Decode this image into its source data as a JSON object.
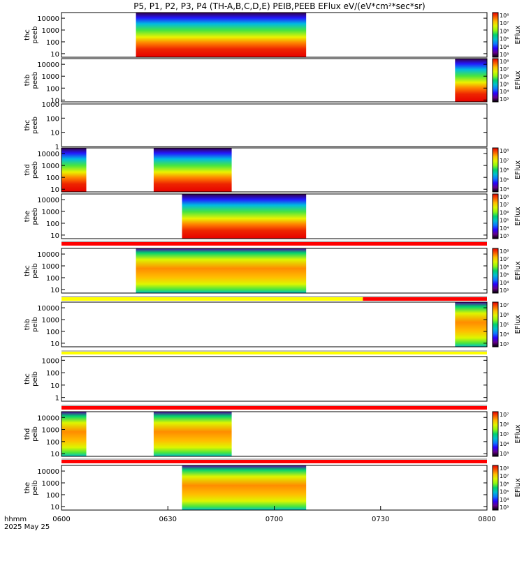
{
  "title": "P5, P1, P2, P3, P4 (TH-A,B,C,D,E) PEIB,PEEB EFlux eV/(eV*cm²*sec*sr)",
  "colors": {
    "flag_red": "#ff0000",
    "flag_yellow": "#ffff00",
    "background": "#ffffff"
  },
  "chart_data": {
    "type": "heatmap",
    "title": "P5, P1, P2, P3, P4 (TH-A,B,C,D,E) PEIB,PEEB EFlux eV/(eV*cm²*sec*sr)",
    "x_axis": {
      "label": "hhmm",
      "date_label": "2025 May 25",
      "range": [
        "0600",
        "0800"
      ],
      "tick_labels": [
        "0600",
        "0630",
        "0700",
        "0730",
        "0800"
      ]
    },
    "colorbar_label": "EFlux",
    "panels": [
      {
        "label": [
          "thc",
          "peeb"
        ],
        "y_range": [
          5,
          30000
        ],
        "y_ticks": [
          "10",
          "100",
          "1000",
          "10000"
        ],
        "data_intervals": [
          [
            "0621",
            "0709"
          ]
        ],
        "colorbar_ticks": [
          "10⁸",
          "10⁷",
          "10⁶",
          "10⁵",
          "10⁴",
          "10³"
        ],
        "colorbar_range_exp": [
          2.5,
          8.3
        ]
      },
      {
        "label": [
          "thb",
          "peeb"
        ],
        "y_range": [
          7,
          30000
        ],
        "y_ticks": [
          "10",
          "100",
          "1000",
          "10000"
        ],
        "data_intervals": [
          [
            "0751",
            "0800"
          ]
        ],
        "colorbar_ticks": [
          "10⁸",
          "10⁷",
          "10⁶",
          "10⁵",
          "10⁴",
          "10³"
        ],
        "colorbar_range_exp": [
          2.8,
          8.3
        ]
      },
      {
        "label": [
          "thc",
          "peeb"
        ],
        "y_range": [
          1,
          1000
        ],
        "y_ticks": [
          "1",
          "10",
          "100",
          "1000"
        ],
        "data_intervals": []
      },
      {
        "label": [
          "thd",
          "peeb"
        ],
        "y_range": [
          6,
          30000
        ],
        "y_ticks": [
          "10",
          "100",
          "1000",
          "10000"
        ],
        "data_intervals": [
          [
            "0600",
            "0607"
          ],
          [
            "0626",
            "0648"
          ]
        ],
        "colorbar_ticks": [
          "10⁸",
          "10⁷",
          "10⁶",
          "10⁵",
          "10⁴"
        ],
        "colorbar_range_exp": [
          3.3,
          8.3
        ]
      },
      {
        "label": [
          "the",
          "peeb"
        ],
        "y_range": [
          5,
          30000
        ],
        "y_ticks": [
          "10",
          "100",
          "1000",
          "10000"
        ],
        "data_intervals": [
          [
            "0634",
            "0709"
          ]
        ],
        "colorbar_ticks": [
          "10⁸",
          "10⁷",
          "10⁶",
          "10⁵",
          "10⁴",
          "10³"
        ],
        "colorbar_range_exp": [
          2.7,
          8.3
        ]
      },
      {
        "label": [
          "thc",
          "peib"
        ],
        "y_range": [
          5,
          30000
        ],
        "y_ticks": [
          "10",
          "100",
          "1000",
          "10000"
        ],
        "data_intervals": [
          [
            "0621",
            "0709"
          ]
        ],
        "colorbar_ticks": [
          "10⁸",
          "10⁷",
          "10⁶",
          "10⁵",
          "10⁴",
          "10³"
        ],
        "colorbar_range_exp": [
          2.7,
          8.3
        ]
      },
      {
        "label": [
          "thb",
          "peib"
        ],
        "y_range": [
          5,
          30000
        ],
        "y_ticks": [
          "10",
          "100",
          "1000",
          "10000"
        ],
        "data_intervals": [
          [
            "0751",
            "0800"
          ]
        ],
        "colorbar_ticks": [
          "10⁷",
          "10⁶",
          "10⁵",
          "10⁴",
          "10³"
        ],
        "colorbar_range_exp": [
          2.7,
          7.4
        ]
      },
      {
        "label": [
          "thc",
          "peib"
        ],
        "y_range": [
          0.5,
          2000
        ],
        "y_ticks": [
          "1",
          "10",
          "100",
          "1000"
        ],
        "data_intervals": []
      },
      {
        "label": [
          "thd",
          "peib"
        ],
        "y_range": [
          6,
          30000
        ],
        "y_ticks": [
          "10",
          "100",
          "1000",
          "10000"
        ],
        "data_intervals": [
          [
            "0600",
            "0607"
          ],
          [
            "0626",
            "0648"
          ]
        ],
        "colorbar_ticks": [
          "10⁷",
          "10⁶",
          "10⁵",
          "10⁴",
          "10³"
        ],
        "colorbar_range_exp": [
          2.7,
          7.6
        ]
      },
      {
        "label": [
          "the",
          "peib"
        ],
        "y_range": [
          5,
          30000
        ],
        "y_ticks": [
          "10",
          "100",
          "1000",
          "10000"
        ],
        "data_intervals": [
          [
            "0634",
            "0709"
          ]
        ],
        "colorbar_ticks": [
          "10⁸",
          "10⁷",
          "10⁶",
          "10⁵",
          "10⁴",
          "10³"
        ],
        "colorbar_range_exp": [
          2.7,
          8.3
        ]
      }
    ],
    "flag_bars": [
      {
        "after_panel": 5,
        "segments": [
          [
            "0600",
            "0800",
            "#ff0000"
          ]
        ]
      },
      {
        "after_panel": 6,
        "segments": [
          [
            "0600",
            "0725",
            "#ffff00"
          ],
          [
            "0725",
            "0800",
            "#ff0000"
          ]
        ]
      },
      {
        "after_panel": 7,
        "segments": [
          [
            "0600",
            "0800",
            "#ffff00"
          ]
        ]
      },
      {
        "after_panel": 8,
        "segments": [
          [
            "0600",
            "0800",
            "#ff0000"
          ]
        ]
      },
      {
        "after_panel": 9,
        "segments": [
          [
            "0600",
            "0800",
            "#ff0000"
          ]
        ]
      }
    ]
  }
}
